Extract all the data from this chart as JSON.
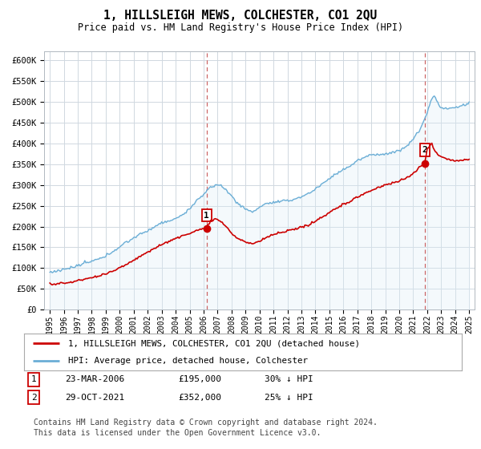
{
  "title": "1, HILLSLEIGH MEWS, COLCHESTER, CO1 2QU",
  "subtitle": "Price paid vs. HM Land Registry's House Price Index (HPI)",
  "ylim": [
    0,
    620000
  ],
  "yticks": [
    0,
    50000,
    100000,
    150000,
    200000,
    250000,
    300000,
    350000,
    400000,
    450000,
    500000,
    550000,
    600000
  ],
  "ytick_labels": [
    "£0",
    "£50K",
    "£100K",
    "£150K",
    "£200K",
    "£250K",
    "£300K",
    "£350K",
    "£400K",
    "£450K",
    "£500K",
    "£550K",
    "£600K"
  ],
  "hpi_color": "#6baed6",
  "hpi_fill_color": "#ddeef8",
  "price_color": "#cc0000",
  "vline_color": "#cc6666",
  "point1_year": 2006.22,
  "point1_value": 195000,
  "point2_year": 2021.83,
  "point2_value": 352000,
  "legend_price_label": "1, HILLSLEIGH MEWS, COLCHESTER, CO1 2QU (detached house)",
  "legend_hpi_label": "HPI: Average price, detached house, Colchester",
  "table_row1": [
    "1",
    "23-MAR-2006",
    "£195,000",
    "30% ↓ HPI"
  ],
  "table_row2": [
    "2",
    "29-OCT-2021",
    "£352,000",
    "25% ↓ HPI"
  ],
  "footer": "Contains HM Land Registry data © Crown copyright and database right 2024.\nThis data is licensed under the Open Government Licence v3.0.",
  "background_color": "#ffffff",
  "grid_color": "#d0d8e0"
}
